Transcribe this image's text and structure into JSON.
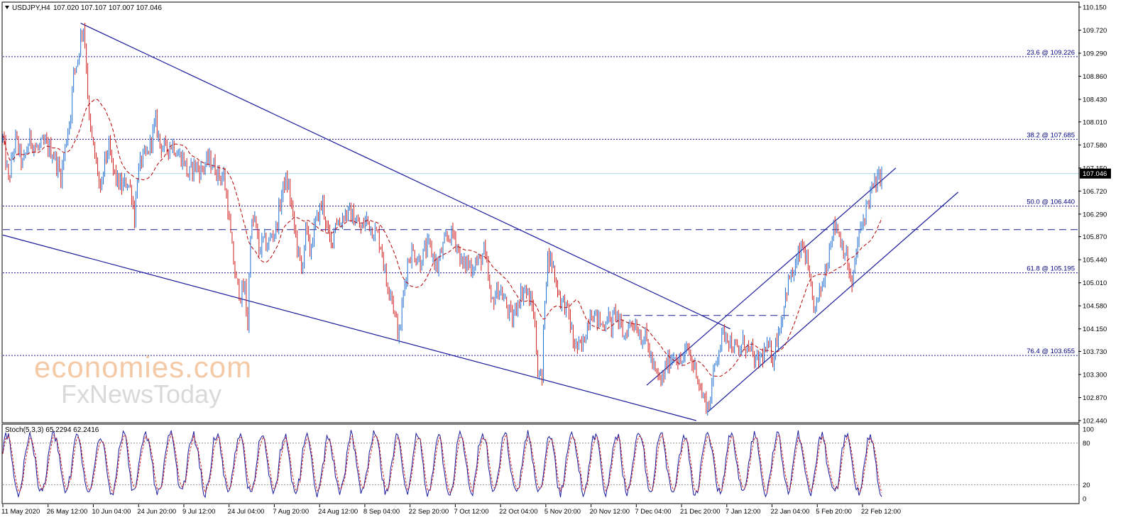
{
  "header": {
    "symbol": "USDJPY,H4",
    "ohlc": "107.020 107.107 107.007 107.046"
  },
  "watermark": {
    "line1": "economies.com",
    "line2": "FxNewsToday"
  },
  "colors": {
    "up_candle": "#1f6fd1",
    "down_candle": "#d11f1f",
    "trendline": "#1a1a9c",
    "fib_line": "#1a1a9c",
    "current_price_line": "#a8d8ea",
    "ma_line": "#b30000",
    "stoch_main": "#1a1a9c",
    "stoch_signal": "#d11f1f"
  },
  "chart_data": [
    {
      "type": "candlestick",
      "title": "USDJPY,H4",
      "y_axis": {
        "ylim": [
          102.44,
          110.15
        ],
        "ticks": [
          110.15,
          109.72,
          109.29,
          108.86,
          108.43,
          108.01,
          107.58,
          107.15,
          106.72,
          106.29,
          105.87,
          105.44,
          105.01,
          104.58,
          104.15,
          103.73,
          103.3,
          102.87,
          102.44
        ],
        "tick_labels": [
          "110.150",
          "109.720",
          "109.290",
          "108.860",
          "108.430",
          "108.010",
          "107.580",
          "107.150",
          "106.720",
          "106.290",
          "105.870",
          "105.440",
          "105.010",
          "104.580",
          "104.150",
          "103.730",
          "103.300",
          "102.870",
          "102.440"
        ]
      },
      "x_axis": {
        "tick_labels": [
          "11 May 2020",
          "26 May 12:00",
          "10 Jun 04:00",
          "24 Jun 20:00",
          "9 Jul 12:00",
          "24 Jul 04:00",
          "7 Aug 20:00",
          "24 Aug 12:00",
          "8 Sep 04:00",
          "22 Sep 20:00",
          "7 Oct 12:00",
          "22 Oct 04:00",
          "5 Nov 20:00",
          "20 Nov 12:00",
          "7 Dec 04:00",
          "21 Dec 20:00",
          "7 Jan 12:00",
          "22 Jan 04:00",
          "5 Feb 20:00",
          "22 Feb 12:00"
        ]
      },
      "current_price": {
        "value": 107.046,
        "label": "107.046"
      },
      "fib_levels": [
        {
          "value": 109.226,
          "label": "23.6 @ 109.226"
        },
        {
          "value": 107.685,
          "label": "38.2 @ 107.685"
        },
        {
          "value": 106.44,
          "label": "50.0 @ 106.440"
        },
        {
          "value": 105.195,
          "label": "61.8 @ 105.195"
        },
        {
          "value": 103.655,
          "label": "76.4 @ 103.655"
        }
      ],
      "dashed_levels": [
        106.0,
        104.4
      ],
      "path_keypoints": [
        [
          0,
          107.7
        ],
        [
          8,
          106.9
        ],
        [
          18,
          107.7
        ],
        [
          28,
          107.2
        ],
        [
          38,
          107.7
        ],
        [
          48,
          107.5
        ],
        [
          60,
          107.6
        ],
        [
          72,
          107.4
        ],
        [
          82,
          107.0
        ],
        [
          90,
          107.7
        ],
        [
          96,
          108.2
        ],
        [
          100,
          108.9
        ],
        [
          106,
          109.2
        ],
        [
          110,
          109.6
        ],
        [
          114,
          109.8
        ],
        [
          118,
          109.1
        ],
        [
          122,
          108.0
        ],
        [
          128,
          107.5
        ],
        [
          134,
          107.1
        ],
        [
          138,
          106.6
        ],
        [
          144,
          107.3
        ],
        [
          150,
          107.5
        ],
        [
          156,
          107.1
        ],
        [
          162,
          106.9
        ],
        [
          168,
          106.8
        ],
        [
          176,
          106.9
        ],
        [
          182,
          106.7
        ],
        [
          186,
          106.2
        ],
        [
          190,
          107.0
        ],
        [
          196,
          107.3
        ],
        [
          204,
          107.4
        ],
        [
          210,
          107.7
        ],
        [
          216,
          108.0
        ],
        [
          222,
          107.6
        ],
        [
          230,
          107.5
        ],
        [
          240,
          107.6
        ],
        [
          248,
          107.4
        ],
        [
          256,
          107.3
        ],
        [
          262,
          107.0
        ],
        [
          270,
          107.2
        ],
        [
          280,
          107.1
        ],
        [
          290,
          107.3
        ],
        [
          298,
          107.2
        ],
        [
          306,
          107.0
        ],
        [
          312,
          107.0
        ],
        [
          318,
          106.4
        ],
        [
          324,
          105.6
        ],
        [
          330,
          105.0
        ],
        [
          336,
          104.8
        ],
        [
          342,
          104.9
        ],
        [
          346,
          104.2
        ],
        [
          350,
          106.0
        ],
        [
          356,
          106.2
        ],
        [
          362,
          105.6
        ],
        [
          368,
          105.8
        ],
        [
          374,
          105.7
        ],
        [
          380,
          105.9
        ],
        [
          386,
          106.0
        ],
        [
          392,
          106.5
        ],
        [
          398,
          106.9
        ],
        [
          404,
          106.8
        ],
        [
          410,
          106.2
        ],
        [
          416,
          105.7
        ],
        [
          422,
          105.2
        ],
        [
          428,
          106.0
        ],
        [
          434,
          105.6
        ],
        [
          440,
          106.0
        ],
        [
          446,
          106.3
        ],
        [
          452,
          106.5
        ],
        [
          458,
          106.0
        ],
        [
          464,
          105.7
        ],
        [
          470,
          106.2
        ],
        [
          476,
          106.1
        ],
        [
          482,
          106.3
        ],
        [
          490,
          106.3
        ],
        [
          498,
          106.2
        ],
        [
          506,
          106.0
        ],
        [
          514,
          106.2
        ],
        [
          522,
          106.0
        ],
        [
          530,
          105.9
        ],
        [
          536,
          105.6
        ],
        [
          542,
          105.0
        ],
        [
          548,
          104.9
        ],
        [
          554,
          104.4
        ],
        [
          560,
          104.0
        ],
        [
          566,
          104.8
        ],
        [
          572,
          105.4
        ],
        [
          578,
          105.6
        ],
        [
          584,
          105.5
        ],
        [
          590,
          105.4
        ],
        [
          596,
          105.6
        ],
        [
          602,
          105.7
        ],
        [
          608,
          105.5
        ],
        [
          614,
          105.3
        ],
        [
          620,
          105.6
        ],
        [
          626,
          105.8
        ],
        [
          632,
          105.9
        ],
        [
          638,
          105.9
        ],
        [
          644,
          105.6
        ],
        [
          650,
          105.3
        ],
        [
          656,
          105.4
        ],
        [
          662,
          105.3
        ],
        [
          668,
          105.4
        ],
        [
          674,
          105.4
        ],
        [
          680,
          105.6
        ],
        [
          686,
          105.1
        ],
        [
          690,
          104.6
        ],
        [
          696,
          104.8
        ],
        [
          702,
          104.9
        ],
        [
          708,
          104.7
        ],
        [
          714,
          104.5
        ],
        [
          720,
          104.3
        ],
        [
          726,
          104.6
        ],
        [
          732,
          104.8
        ],
        [
          738,
          104.9
        ],
        [
          744,
          104.7
        ],
        [
          750,
          104.5
        ],
        [
          756,
          103.4
        ],
        [
          762,
          103.2
        ],
        [
          766,
          104.8
        ],
        [
          770,
          105.5
        ],
        [
          776,
          105.4
        ],
        [
          782,
          105.0
        ],
        [
          788,
          104.7
        ],
        [
          794,
          104.6
        ],
        [
          800,
          104.4
        ],
        [
          806,
          103.9
        ],
        [
          812,
          103.8
        ],
        [
          818,
          103.8
        ],
        [
          824,
          104.1
        ],
        [
          830,
          104.5
        ],
        [
          836,
          104.4
        ],
        [
          842,
          104.3
        ],
        [
          848,
          104.2
        ],
        [
          854,
          104.4
        ],
        [
          860,
          104.2
        ],
        [
          866,
          104.5
        ],
        [
          872,
          104.2
        ],
        [
          878,
          104.0
        ],
        [
          884,
          104.2
        ],
        [
          890,
          104.3
        ],
        [
          896,
          104.2
        ],
        [
          902,
          104.0
        ],
        [
          908,
          104.0
        ],
        [
          914,
          103.7
        ],
        [
          920,
          103.4
        ],
        [
          926,
          103.2
        ],
        [
          932,
          103.2
        ],
        [
          938,
          103.5
        ],
        [
          944,
          103.6
        ],
        [
          950,
          103.7
        ],
        [
          956,
          103.5
        ],
        [
          962,
          103.6
        ],
        [
          968,
          103.8
        ],
        [
          974,
          103.5
        ],
        [
          980,
          103.4
        ],
        [
          986,
          103.0
        ],
        [
          992,
          102.8
        ],
        [
          998,
          102.7
        ],
        [
          1004,
          103.3
        ],
        [
          1010,
          103.7
        ],
        [
          1016,
          104.0
        ],
        [
          1022,
          104.1
        ],
        [
          1028,
          103.9
        ],
        [
          1034,
          103.8
        ],
        [
          1040,
          103.7
        ],
        [
          1046,
          103.9
        ],
        [
          1052,
          103.8
        ],
        [
          1058,
          103.7
        ],
        [
          1064,
          103.5
        ],
        [
          1070,
          103.6
        ],
        [
          1076,
          103.7
        ],
        [
          1082,
          103.8
        ],
        [
          1088,
          103.6
        ],
        [
          1094,
          104.0
        ],
        [
          1100,
          104.3
        ],
        [
          1106,
          104.8
        ],
        [
          1112,
          105.1
        ],
        [
          1118,
          105.2
        ],
        [
          1124,
          105.5
        ],
        [
          1130,
          105.7
        ],
        [
          1136,
          105.4
        ],
        [
          1142,
          104.8
        ],
        [
          1148,
          104.5
        ],
        [
          1154,
          104.8
        ],
        [
          1160,
          105.1
        ],
        [
          1166,
          105.5
        ],
        [
          1172,
          106.0
        ],
        [
          1178,
          106.1
        ],
        [
          1184,
          105.8
        ],
        [
          1190,
          105.6
        ],
        [
          1196,
          105.2
        ],
        [
          1200,
          104.9
        ],
        [
          1206,
          105.6
        ],
        [
          1212,
          106.0
        ],
        [
          1218,
          106.3
        ],
        [
          1224,
          106.6
        ],
        [
          1230,
          106.8
        ],
        [
          1236,
          106.9
        ],
        [
          1242,
          107.05
        ]
      ],
      "path_x_units": "candle index (0..1242, left to right)"
    },
    {
      "type": "line",
      "title": "Stoch(5,3,3) 65.2294 62.2416",
      "series": [
        {
          "name": "Stoch main",
          "value": 65.2294
        },
        {
          "name": "Stoch signal",
          "value": 62.2416
        }
      ],
      "ylim": [
        0,
        100
      ],
      "tick_labels": [
        "100",
        "80",
        "20",
        "0"
      ],
      "levels": [
        80,
        20
      ]
    }
  ]
}
